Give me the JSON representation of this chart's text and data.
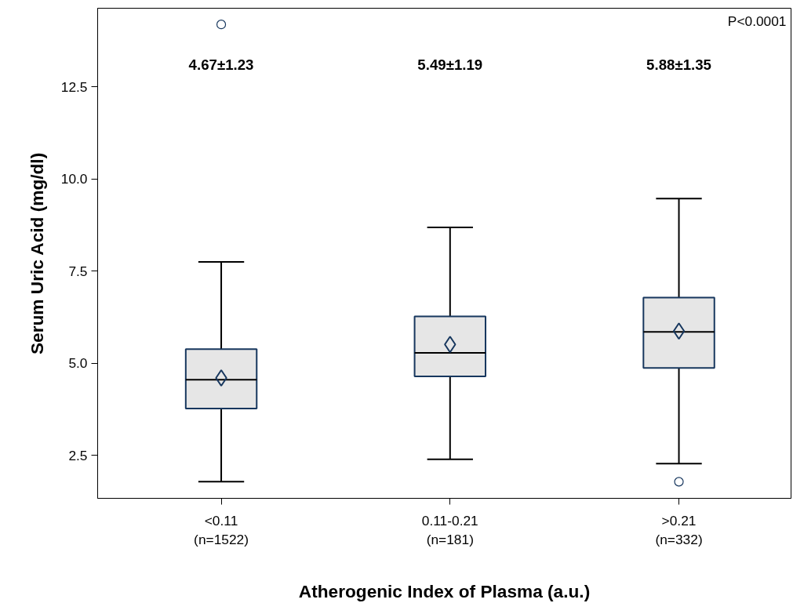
{
  "chart_data": {
    "type": "box",
    "xlabel": "Atherogenic Index of Plasma (a.u.)",
    "ylabel": "Serum Uric Acid (mg/dl)",
    "categories": [
      "<0.11\n(n=1522)",
      "0.11-0.21\n(n=181)",
      ">0.21\n(n=332)"
    ],
    "series": [
      {
        "color": "#e6e6e6",
        "boxes": [
          {
            "low": 1.78,
            "q1": 3.77,
            "median": 4.55,
            "q3": 5.38,
            "high": 7.75,
            "mean": 4.6,
            "outliers": [
              14.2
            ]
          },
          {
            "low": 2.39,
            "q1": 4.64,
            "median": 5.28,
            "q3": 6.27,
            "high": 8.69,
            "mean": 5.51
          },
          {
            "low": 2.27,
            "q1": 4.87,
            "median": 5.85,
            "q3": 6.78,
            "high": 9.47,
            "mean": 5.87,
            "outliers": [
              1.78
            ]
          }
        ]
      }
    ],
    "ylim": [
      1.33,
      14.64
    ],
    "yticks": [
      {
        "value": 2.5,
        "label": "2.5"
      },
      {
        "value": 5,
        "label": "5.0"
      },
      {
        "value": 7.5,
        "label": "7.5"
      },
      {
        "value": 10,
        "label": "10.0"
      },
      {
        "value": 12.5,
        "label": "12.5"
      }
    ],
    "annotations": [
      "4.67±1.23",
      "5.49±1.19",
      "5.88±1.35",
      "P<0.0001"
    ]
  }
}
